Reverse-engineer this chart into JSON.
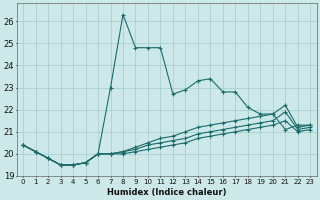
{
  "xlabel": "Humidex (Indice chaleur)",
  "xlim": [
    -0.5,
    23.5
  ],
  "ylim": [
    19,
    26.8
  ],
  "yticks": [
    19,
    20,
    21,
    22,
    23,
    24,
    25,
    26
  ],
  "xticks": [
    0,
    1,
    2,
    3,
    4,
    5,
    6,
    7,
    8,
    9,
    10,
    11,
    12,
    13,
    14,
    15,
    16,
    17,
    18,
    19,
    20,
    21,
    22,
    23
  ],
  "bg_color": "#cce8e8",
  "grid_color": "#aacfcf",
  "line_color": "#1a6b6b",
  "lines": [
    [
      20.4,
      20.1,
      19.8,
      19.5,
      19.5,
      19.6,
      20.0,
      23.0,
      26.3,
      24.8,
      24.8,
      24.8,
      22.7,
      22.9,
      23.3,
      23.4,
      22.8,
      22.8,
      22.1,
      21.8,
      21.8,
      21.1,
      21.3,
      21.3
    ],
    [
      20.4,
      20.1,
      19.8,
      19.5,
      19.5,
      19.6,
      20.0,
      20.0,
      20.1,
      20.3,
      20.5,
      20.7,
      20.8,
      21.0,
      21.2,
      21.3,
      21.4,
      21.5,
      21.6,
      21.7,
      21.8,
      22.2,
      21.2,
      21.3
    ],
    [
      20.4,
      20.1,
      19.8,
      19.5,
      19.5,
      19.6,
      20.0,
      20.0,
      20.1,
      20.2,
      20.4,
      20.5,
      20.6,
      20.7,
      20.9,
      21.0,
      21.1,
      21.2,
      21.3,
      21.4,
      21.5,
      21.9,
      21.1,
      21.2
    ],
    [
      20.4,
      20.1,
      19.8,
      19.5,
      19.5,
      19.6,
      20.0,
      20.0,
      20.0,
      20.1,
      20.2,
      20.3,
      20.4,
      20.5,
      20.7,
      20.8,
      20.9,
      21.0,
      21.1,
      21.2,
      21.3,
      21.5,
      21.0,
      21.1
    ]
  ]
}
